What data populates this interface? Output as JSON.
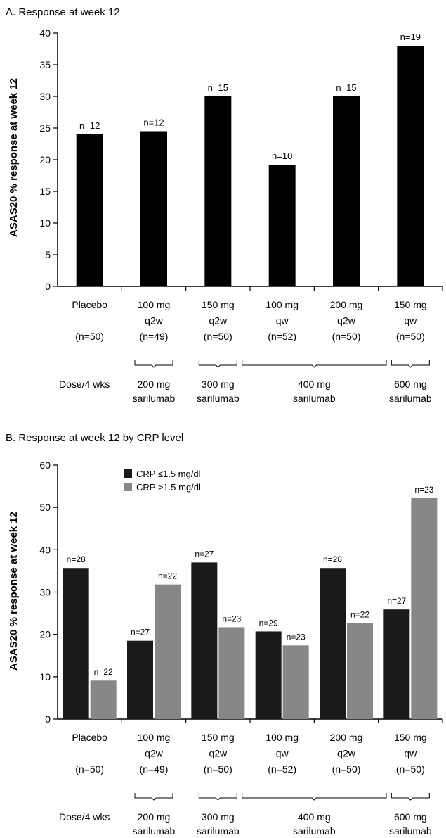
{
  "chart_data": [
    {
      "type": "bar",
      "title": "A. Response at week 12",
      "ylabel": "ASAS20 % response at week 12",
      "ylim": [
        0,
        40
      ],
      "yticks": [
        0,
        5,
        10,
        15,
        20,
        25,
        30,
        35,
        40
      ],
      "categories": [
        {
          "lines": [
            "Placebo",
            "",
            "(n=50)"
          ]
        },
        {
          "lines": [
            "100 mg",
            "q2w",
            "(n=49)"
          ]
        },
        {
          "lines": [
            "150 mg",
            "q2w",
            "(n=50)"
          ]
        },
        {
          "lines": [
            "100 mg",
            "qw",
            "(n=52)"
          ]
        },
        {
          "lines": [
            "200 mg",
            "q2w",
            "(n=50)"
          ]
        },
        {
          "lines": [
            "150 mg",
            "qw",
            "(n=50)"
          ]
        }
      ],
      "series": [
        {
          "color": "#000000",
          "values": [
            24,
            24.5,
            30,
            19.2,
            30,
            38
          ],
          "labels": [
            "n=12",
            "n=12",
            "n=15",
            "n=10",
            "n=15",
            "n=19"
          ]
        }
      ],
      "dose_label": "Dose/4 wks",
      "dose_groups": [
        {
          "from": 1,
          "to": 1,
          "lines": [
            "200 mg",
            "sarilumab"
          ]
        },
        {
          "from": 2,
          "to": 2,
          "lines": [
            "300 mg",
            "sarilumab"
          ]
        },
        {
          "from": 3,
          "to": 4,
          "lines": [
            "400 mg",
            "sarilumab"
          ]
        },
        {
          "from": 5,
          "to": 5,
          "lines": [
            "600 mg",
            "sarilumab"
          ]
        }
      ]
    },
    {
      "type": "bar",
      "title": "B. Response at week 12 by CRP level",
      "ylabel": "ASAS20 % response at week 12",
      "ylim": [
        0,
        60
      ],
      "yticks": [
        0,
        10,
        20,
        30,
        40,
        50,
        60
      ],
      "legend_position": "top-left",
      "categories": [
        {
          "lines": [
            "Placebo",
            "",
            "(n=50)"
          ]
        },
        {
          "lines": [
            "100 mg",
            "q2w",
            "(n=49)"
          ]
        },
        {
          "lines": [
            "150 mg",
            "q2w",
            "(n=50)"
          ]
        },
        {
          "lines": [
            "100 mg",
            "qw",
            "(n=52)"
          ]
        },
        {
          "lines": [
            "200 mg",
            "q2w",
            "(n=50)"
          ]
        },
        {
          "lines": [
            "150 mg",
            "qw",
            "(n=50)"
          ]
        }
      ],
      "series": [
        {
          "name": "CRP ≤1.5 mg/dl",
          "color": "#1a1a1a",
          "values": [
            35.7,
            18.5,
            37,
            20.7,
            35.7,
            25.9
          ],
          "labels": [
            "n=28",
            "n=27",
            "n=27",
            "n=29",
            "n=28",
            "n=27"
          ]
        },
        {
          "name": "CRP >1.5 mg/dl",
          "color": "#878787",
          "values": [
            9.1,
            31.8,
            21.7,
            17.4,
            22.7,
            52.2
          ],
          "labels": [
            "n=22",
            "n=22",
            "n=23",
            "n=23",
            "n=22",
            "n=23"
          ]
        }
      ],
      "dose_label": "Dose/4 wks",
      "dose_groups": [
        {
          "from": 1,
          "to": 1,
          "lines": [
            "200 mg",
            "sarilumab"
          ]
        },
        {
          "from": 2,
          "to": 2,
          "lines": [
            "300 mg",
            "sarilumab"
          ]
        },
        {
          "from": 3,
          "to": 4,
          "lines": [
            "400 mg",
            "sarilumab"
          ]
        },
        {
          "from": 5,
          "to": 5,
          "lines": [
            "600 mg",
            "sarilumab"
          ]
        }
      ]
    }
  ]
}
